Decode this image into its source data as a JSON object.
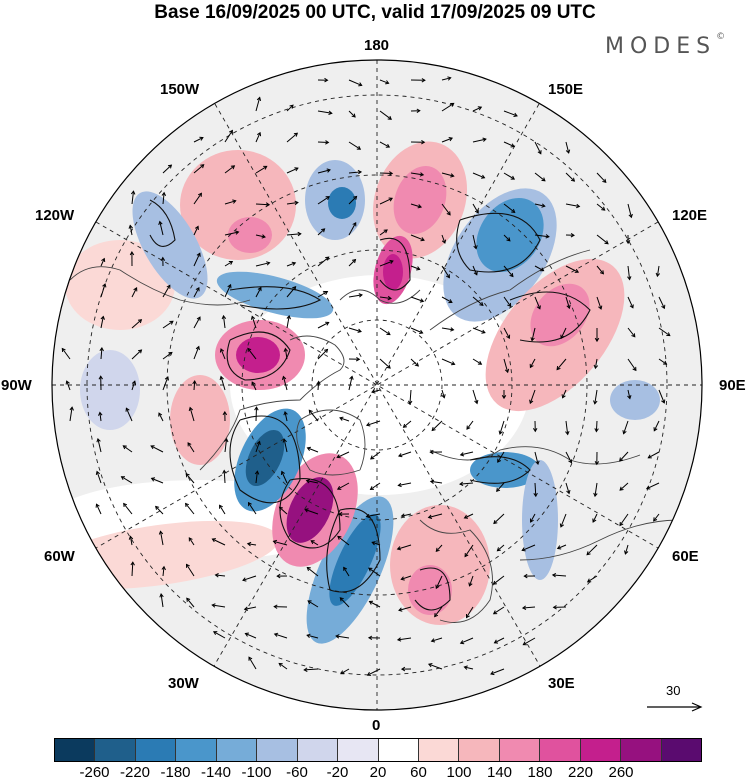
{
  "header": {
    "title": "Base 16/09/2025 00 UTC, valid 17/09/2025 09 UTC",
    "brand": "MODES",
    "brand_mark": "©"
  },
  "map": {
    "projection": "north-polar-stereographic",
    "longitude_labels": {
      "top": "180",
      "top_left": "150W",
      "top_right": "150E",
      "upper_left": "120W",
      "upper_right": "120E",
      "left": "90W",
      "right": "90E",
      "lower_left": "60W",
      "lower_right": "60E",
      "bottom_left": "30W",
      "bottom_right": "30E",
      "bottom": "0"
    },
    "reference_vector": {
      "label": "30"
    },
    "anomaly_centers": [
      {
        "sign": "negative",
        "region": "north atlantic / greenland south"
      },
      {
        "sign": "positive",
        "region": "labrador sea"
      },
      {
        "sign": "negative",
        "region": "canadian archipelago"
      },
      {
        "sign": "positive",
        "region": "hudson bay"
      },
      {
        "sign": "positive",
        "region": "chukchi / east siberian sea"
      },
      {
        "sign": "negative",
        "region": "eastern siberia"
      },
      {
        "sign": "positive",
        "region": "central siberia"
      },
      {
        "sign": "positive",
        "region": "scandinavia / barents"
      },
      {
        "sign": "negative",
        "region": "western siberia"
      },
      {
        "sign": "negative",
        "region": "alaska"
      },
      {
        "sign": "positive",
        "region": "gulf of alaska"
      }
    ]
  },
  "colorbar": {
    "colors": [
      "#0b3a5e",
      "#1f5f8b",
      "#2b7bb4",
      "#4a96cb",
      "#76acd8",
      "#a7bfe2",
      "#d0d6ec",
      "#e7e6f3",
      "#ffffff",
      "#fbd9d6",
      "#f6b7bc",
      "#f08ab0",
      "#e0529e",
      "#c41f8d",
      "#96117f",
      "#5a0b6f"
    ],
    "ticks": [
      "-260",
      "-220",
      "-180",
      "-140",
      "-100",
      "-60",
      "-20",
      "20",
      "60",
      "100",
      "140",
      "180",
      "220",
      "260"
    ]
  }
}
